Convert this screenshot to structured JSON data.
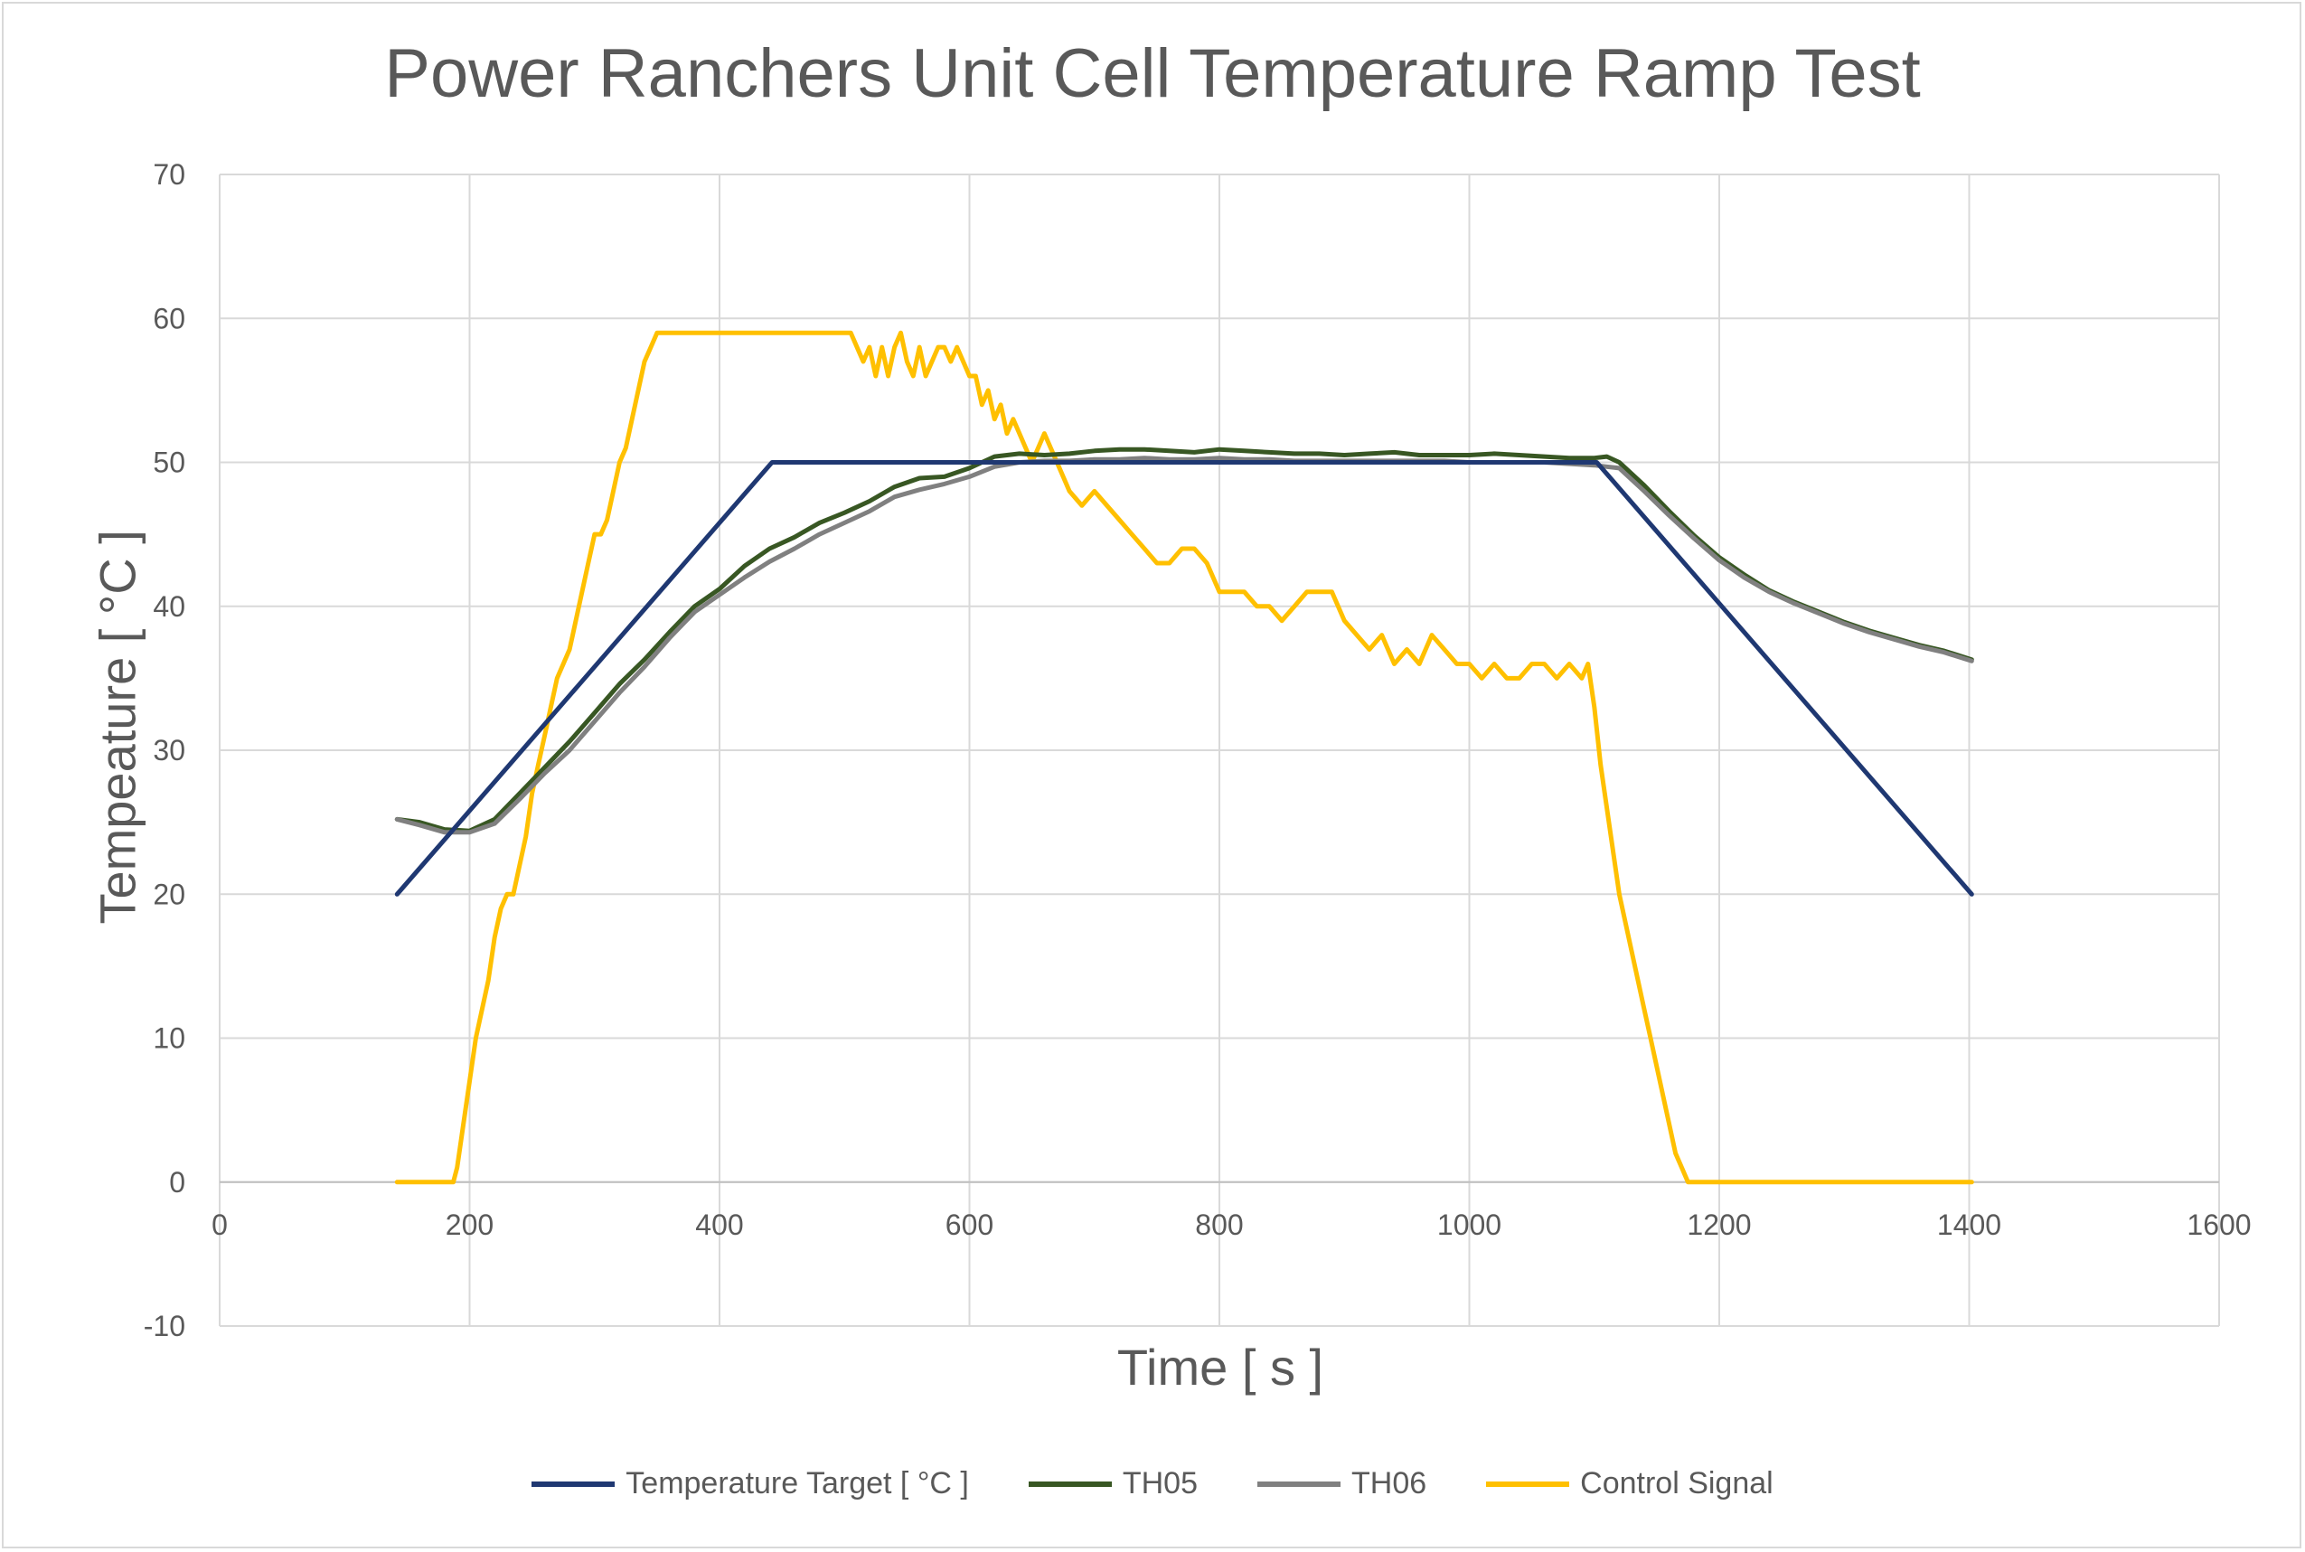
{
  "chart_data": {
    "type": "line",
    "title": "Power Ranchers Unit Cell Temperature Ramp Test",
    "xlabel": "Time [ s ]",
    "ylabel": "Tempeature  [ °C ]",
    "xlim": [
      0,
      1600
    ],
    "ylim": [
      -10,
      70
    ],
    "x_ticks": [
      0,
      200,
      400,
      600,
      800,
      1000,
      1200,
      1400,
      1600
    ],
    "y_ticks": [
      -10,
      0,
      10,
      20,
      30,
      40,
      50,
      60,
      70
    ],
    "grid": true,
    "legend_position": "bottom",
    "series": [
      {
        "name": "Temperature Target [ °C ]",
        "color": "#1f3872",
        "x": [
          142,
          442,
          1102,
          1402
        ],
        "y": [
          20,
          50,
          50,
          20
        ]
      },
      {
        "name": "TH05",
        "color": "#385723",
        "x": [
          142,
          160,
          180,
          200,
          220,
          240,
          260,
          280,
          300,
          320,
          340,
          360,
          380,
          400,
          420,
          440,
          460,
          480,
          500,
          520,
          540,
          560,
          580,
          600,
          620,
          640,
          660,
          680,
          700,
          720,
          740,
          760,
          780,
          800,
          820,
          840,
          860,
          880,
          900,
          920,
          940,
          960,
          980,
          1000,
          1020,
          1040,
          1060,
          1080,
          1100,
          1110,
          1120,
          1140,
          1160,
          1180,
          1200,
          1220,
          1240,
          1260,
          1280,
          1300,
          1320,
          1340,
          1360,
          1380,
          1402
        ],
        "y": [
          25.2,
          25.0,
          24.5,
          24.4,
          25.2,
          27.0,
          28.8,
          30.6,
          32.6,
          34.6,
          36.3,
          38.2,
          40.0,
          41.2,
          42.8,
          44.0,
          44.8,
          45.8,
          46.5,
          47.3,
          48.3,
          48.9,
          49.0,
          49.6,
          50.4,
          50.6,
          50.5,
          50.6,
          50.8,
          50.9,
          50.9,
          50.8,
          50.7,
          50.9,
          50.8,
          50.7,
          50.6,
          50.6,
          50.5,
          50.6,
          50.7,
          50.5,
          50.5,
          50.5,
          50.6,
          50.5,
          50.4,
          50.3,
          50.3,
          50.4,
          50.0,
          48.4,
          46.6,
          44.9,
          43.4,
          42.2,
          41.1,
          40.3,
          39.6,
          38.9,
          38.3,
          37.8,
          37.3,
          36.9,
          36.3
        ]
      },
      {
        "name": "TH06",
        "color": "#808080",
        "x": [
          142,
          160,
          180,
          200,
          220,
          240,
          260,
          280,
          300,
          320,
          340,
          360,
          380,
          400,
          420,
          440,
          460,
          480,
          500,
          520,
          540,
          560,
          580,
          600,
          620,
          640,
          660,
          680,
          700,
          720,
          740,
          760,
          780,
          800,
          820,
          840,
          860,
          880,
          900,
          920,
          940,
          960,
          980,
          1000,
          1020,
          1040,
          1060,
          1080,
          1100,
          1110,
          1120,
          1140,
          1160,
          1180,
          1200,
          1220,
          1240,
          1260,
          1280,
          1300,
          1320,
          1340,
          1360,
          1380,
          1402
        ],
        "y": [
          25.2,
          24.8,
          24.3,
          24.3,
          24.9,
          26.6,
          28.4,
          30.0,
          32.0,
          34.0,
          35.8,
          37.8,
          39.6,
          40.8,
          42.0,
          43.1,
          44.0,
          45.0,
          45.8,
          46.6,
          47.6,
          48.1,
          48.5,
          49.0,
          49.7,
          50.0,
          50.1,
          50.1,
          50.2,
          50.2,
          50.3,
          50.2,
          50.2,
          50.3,
          50.2,
          50.2,
          50.1,
          50.1,
          50.1,
          50.1,
          50.1,
          50.1,
          50.1,
          50.0,
          50.0,
          50.0,
          50.0,
          49.9,
          49.8,
          49.7,
          49.6,
          48.0,
          46.3,
          44.7,
          43.2,
          42.0,
          41.0,
          40.2,
          39.5,
          38.8,
          38.2,
          37.7,
          37.2,
          36.8,
          36.2
        ]
      },
      {
        "name": "Control Signal",
        "color": "#ffc000",
        "x": [
          142,
          187,
          190,
          195,
          200,
          205,
          210,
          215,
          220,
          225,
          230,
          235,
          240,
          245,
          250,
          255,
          260,
          265,
          270,
          275,
          280,
          285,
          290,
          295,
          300,
          305,
          310,
          315,
          320,
          325,
          330,
          335,
          340,
          345,
          350,
          360,
          380,
          400,
          420,
          440,
          460,
          480,
          500,
          505,
          510,
          515,
          520,
          525,
          530,
          535,
          540,
          545,
          550,
          555,
          560,
          565,
          570,
          575,
          580,
          585,
          590,
          595,
          600,
          605,
          610,
          615,
          620,
          625,
          630,
          635,
          640,
          645,
          650,
          655,
          660,
          665,
          670,
          675,
          680,
          690,
          700,
          710,
          720,
          730,
          740,
          750,
          760,
          770,
          780,
          790,
          800,
          810,
          820,
          830,
          840,
          850,
          860,
          870,
          880,
          890,
          900,
          910,
          920,
          930,
          940,
          950,
          960,
          970,
          980,
          990,
          1000,
          1010,
          1020,
          1030,
          1040,
          1050,
          1060,
          1070,
          1080,
          1090,
          1095,
          1100,
          1105,
          1110,
          1115,
          1120,
          1125,
          1130,
          1135,
          1140,
          1145,
          1150,
          1155,
          1160,
          1165,
          1170,
          1175,
          1180,
          1185,
          1190,
          1195,
          1198,
          1210,
          1300,
          1402
        ],
        "y": [
          0,
          0,
          1,
          4,
          7,
          10,
          12,
          14,
          17,
          19,
          20,
          20,
          22,
          24,
          27,
          29,
          31,
          33,
          35,
          36,
          37,
          39,
          41,
          43,
          45,
          45,
          46,
          48,
          50,
          51,
          53,
          55,
          57,
          58,
          59,
          59,
          59,
          59,
          59,
          59,
          59,
          59,
          59,
          59,
          58,
          57,
          58,
          56,
          58,
          56,
          58,
          59,
          57,
          56,
          58,
          56,
          57,
          58,
          58,
          57,
          58,
          57,
          56,
          56,
          54,
          55,
          53,
          54,
          52,
          53,
          52,
          51,
          50,
          51,
          52,
          51,
          50,
          49,
          48,
          47,
          48,
          47,
          46,
          45,
          44,
          43,
          43,
          44,
          44,
          43,
          41,
          41,
          41,
          40,
          40,
          39,
          40,
          41,
          41,
          41,
          39,
          38,
          37,
          38,
          36,
          37,
          36,
          38,
          37,
          36,
          36,
          35,
          36,
          35,
          35,
          36,
          36,
          35,
          36,
          35,
          36,
          33,
          29,
          26,
          23,
          20,
          18,
          16,
          14,
          12,
          10,
          8,
          6,
          4,
          2,
          1,
          0,
          0,
          0,
          0,
          0,
          0,
          0,
          0,
          0
        ]
      }
    ]
  }
}
